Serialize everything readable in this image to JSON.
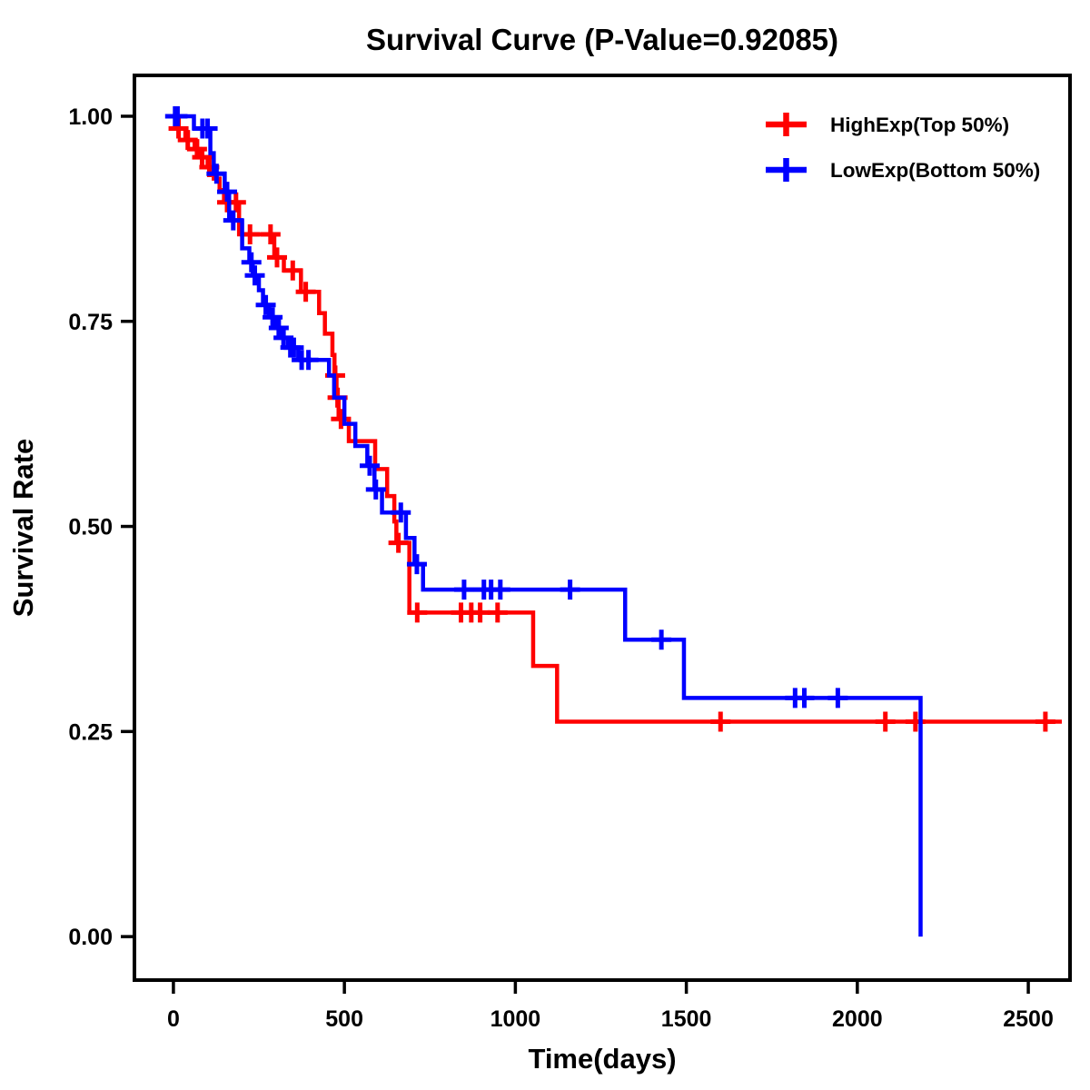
{
  "chart_data": {
    "type": "line",
    "subtype": "kaplan-meier-step",
    "title": "Survival Curve (P-Value=0.92085)",
    "xlabel": "Time(days)",
    "ylabel": "Survival Rate",
    "grid": false,
    "legend_position": "top-right-inside",
    "x_range": [
      -114,
      2622
    ],
    "y_range": [
      -0.053,
      1.0498
    ],
    "x_ticks": [
      {
        "value": 0,
        "label": "0"
      },
      {
        "value": 500,
        "label": "500"
      },
      {
        "value": 1000,
        "label": "1000"
      },
      {
        "value": 1500,
        "label": "1500"
      },
      {
        "value": 2000,
        "label": "2000"
      },
      {
        "value": 2500,
        "label": "2500"
      }
    ],
    "y_ticks": [
      {
        "value": 0.0,
        "label": "0.00"
      },
      {
        "value": 0.25,
        "label": "0.25"
      },
      {
        "value": 0.5,
        "label": "0.50"
      },
      {
        "value": 0.75,
        "label": "0.75"
      },
      {
        "value": 1.0,
        "label": "1.00"
      }
    ],
    "series": [
      {
        "name": "HighExp(Top 50%)",
        "color": "#ff0000",
        "end_day": 2598,
        "steps": [
          [
            0,
            1.0
          ],
          [
            8,
            0.985
          ],
          [
            35,
            0.971
          ],
          [
            62,
            0.96
          ],
          [
            78,
            0.95
          ],
          [
            100,
            0.938
          ],
          [
            118,
            0.924
          ],
          [
            135,
            0.91
          ],
          [
            148,
            0.895
          ],
          [
            192,
            0.856
          ],
          [
            295,
            0.828
          ],
          [
            323,
            0.812
          ],
          [
            373,
            0.786
          ],
          [
            426,
            0.76
          ],
          [
            443,
            0.735
          ],
          [
            465,
            0.709
          ],
          [
            471,
            0.684
          ],
          [
            477,
            0.657
          ],
          [
            483,
            0.631
          ],
          [
            513,
            0.604
          ],
          [
            590,
            0.57
          ],
          [
            625,
            0.537
          ],
          [
            646,
            0.506
          ],
          [
            652,
            0.48
          ],
          [
            690,
            0.395
          ],
          [
            1052,
            0.33
          ],
          [
            1122,
            0.262
          ]
        ],
        "censors": [
          [
            15,
            0.985
          ],
          [
            42,
            0.971
          ],
          [
            69,
            0.96
          ],
          [
            84,
            0.95
          ],
          [
            105,
            0.938
          ],
          [
            157,
            0.895
          ],
          [
            183,
            0.895
          ],
          [
            224,
            0.856
          ],
          [
            284,
            0.856
          ],
          [
            303,
            0.828
          ],
          [
            349,
            0.812
          ],
          [
            387,
            0.786
          ],
          [
            473,
            0.684
          ],
          [
            480,
            0.657
          ],
          [
            490,
            0.631
          ],
          [
            658,
            0.48
          ],
          [
            713,
            0.395
          ],
          [
            841,
            0.395
          ],
          [
            871,
            0.395
          ],
          [
            897,
            0.395
          ],
          [
            948,
            0.395
          ],
          [
            1600,
            0.262
          ],
          [
            2082,
            0.262
          ],
          [
            2170,
            0.262
          ],
          [
            2550,
            0.262
          ]
        ]
      },
      {
        "name": "LowExp(Bottom 50%)",
        "color": "#0000ff",
        "end_day": 2185,
        "steps": [
          [
            0,
            1.0
          ],
          [
            60,
            0.985
          ],
          [
            108,
            0.955
          ],
          [
            118,
            0.93
          ],
          [
            150,
            0.908
          ],
          [
            163,
            0.873
          ],
          [
            201,
            0.839
          ],
          [
            222,
            0.822
          ],
          [
            232,
            0.806
          ],
          [
            250,
            0.788
          ],
          [
            262,
            0.77
          ],
          [
            280,
            0.755
          ],
          [
            300,
            0.742
          ],
          [
            318,
            0.73
          ],
          [
            335,
            0.718
          ],
          [
            365,
            0.703
          ],
          [
            455,
            0.684
          ],
          [
            470,
            0.657
          ],
          [
            500,
            0.625
          ],
          [
            532,
            0.598
          ],
          [
            567,
            0.574
          ],
          [
            588,
            0.545
          ],
          [
            610,
            0.517
          ],
          [
            680,
            0.486
          ],
          [
            705,
            0.454
          ],
          [
            730,
            0.423
          ],
          [
            1321,
            0.362
          ],
          [
            1493,
            0.291
          ],
          [
            2185,
            0.0
          ]
        ],
        "censors": [
          [
            5,
            1.0
          ],
          [
            12,
            1.0
          ],
          [
            85,
            0.985
          ],
          [
            100,
            0.985
          ],
          [
            126,
            0.93
          ],
          [
            157,
            0.908
          ],
          [
            175,
            0.873
          ],
          [
            228,
            0.822
          ],
          [
            238,
            0.806
          ],
          [
            270,
            0.77
          ],
          [
            290,
            0.755
          ],
          [
            308,
            0.742
          ],
          [
            322,
            0.73
          ],
          [
            342,
            0.718
          ],
          [
            352,
            0.718
          ],
          [
            375,
            0.703
          ],
          [
            395,
            0.703
          ],
          [
            574,
            0.574
          ],
          [
            592,
            0.545
          ],
          [
            665,
            0.517
          ],
          [
            712,
            0.454
          ],
          [
            850,
            0.423
          ],
          [
            908,
            0.423
          ],
          [
            929,
            0.423
          ],
          [
            956,
            0.423
          ],
          [
            1160,
            0.423
          ],
          [
            1427,
            0.362
          ],
          [
            1818,
            0.291
          ],
          [
            1845,
            0.291
          ],
          [
            1943,
            0.291
          ]
        ]
      }
    ]
  }
}
